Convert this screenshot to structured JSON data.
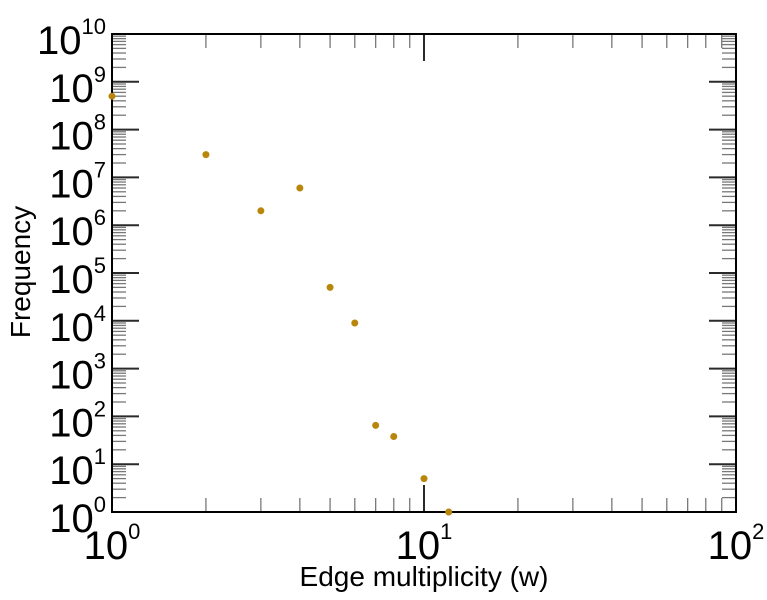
{
  "chart_data": {
    "type": "scatter",
    "title": "",
    "xlabel": "Edge multiplicity (w)",
    "ylabel": "Frequency",
    "x_scale": "log10",
    "y_scale": "log10",
    "xlim": [
      1,
      100
    ],
    "ylim": [
      1,
      10000000000
    ],
    "x_tick_exponents": [
      0,
      1,
      2
    ],
    "y_tick_exponents": [
      0,
      1,
      2,
      3,
      4,
      5,
      6,
      7,
      8,
      9,
      10
    ],
    "minor_tick_multiples": [
      2,
      3,
      4,
      5,
      6,
      7,
      8,
      9
    ],
    "tick_label_base": "10",
    "grid": false,
    "legend": null,
    "points": [
      {
        "x": 1,
        "y": 500000000
      },
      {
        "x": 2,
        "y": 30000000
      },
      {
        "x": 3,
        "y": 2000000
      },
      {
        "x": 4,
        "y": 6000000
      },
      {
        "x": 5,
        "y": 50000
      },
      {
        "x": 6,
        "y": 9000
      },
      {
        "x": 7,
        "y": 65
      },
      {
        "x": 8,
        "y": 38
      },
      {
        "x": 10,
        "y": 5
      },
      {
        "x": 12,
        "y": 1
      }
    ],
    "marker": {
      "shape": "filled-circle",
      "color": "#b8860b",
      "radius_px": 3.5
    },
    "colors": {
      "axis": "#000000",
      "major_tick": "#2a2a2a",
      "minor_tick": "#787878",
      "background": "#ffffff",
      "text": "#000000"
    }
  }
}
